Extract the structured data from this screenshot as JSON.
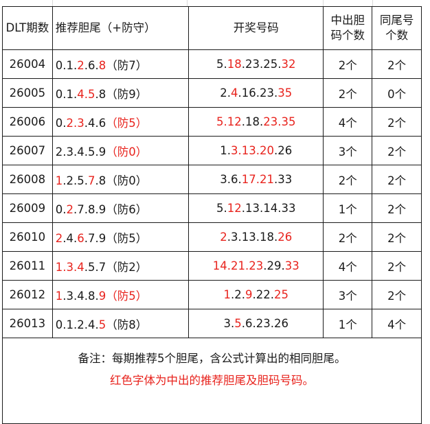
{
  "headers": {
    "period": "DLT期数",
    "recommend": "推荐胆尾（+防守）",
    "draw": "开奖号码",
    "hit": "中出胆码个数",
    "same_tail": "同尾号个数"
  },
  "hit_color": "#e8231d",
  "rows": [
    {
      "period": "26004",
      "recommend": [
        {
          "t": "0.1.",
          "h": false
        },
        {
          "t": "2",
          "h": true
        },
        {
          "t": ".6.",
          "h": false
        },
        {
          "t": "8",
          "h": true
        },
        {
          "t": "（防7）",
          "h": false
        }
      ],
      "draw": [
        {
          "t": "5.",
          "h": false
        },
        {
          "t": "18",
          "h": true
        },
        {
          "t": ".23.25.",
          "h": false
        },
        {
          "t": "32",
          "h": true
        }
      ],
      "hit": "2个",
      "same_tail": "2个"
    },
    {
      "period": "26005",
      "recommend": [
        {
          "t": "0.1.",
          "h": false
        },
        {
          "t": "4.5",
          "h": true
        },
        {
          "t": ".8（防9）",
          "h": false
        }
      ],
      "draw": [
        {
          "t": "2.",
          "h": false
        },
        {
          "t": "4",
          "h": true
        },
        {
          "t": ".16.23.",
          "h": false
        },
        {
          "t": "35",
          "h": true
        }
      ],
      "hit": "2个",
      "same_tail": "0个"
    },
    {
      "period": "26006",
      "recommend": [
        {
          "t": "0.",
          "h": false
        },
        {
          "t": "2.3",
          "h": true
        },
        {
          "t": ".4.6",
          "h": false
        },
        {
          "t": "（防5）",
          "h": true
        }
      ],
      "draw": [
        {
          "t": "5.12",
          "h": true
        },
        {
          "t": ".18.",
          "h": false
        },
        {
          "t": "23.35",
          "h": true
        }
      ],
      "hit": "4个",
      "same_tail": "2个"
    },
    {
      "period": "26007",
      "recommend": [
        {
          "t": "2.3.4.5.9",
          "h": false
        },
        {
          "t": "（防0）",
          "h": true
        }
      ],
      "draw": [
        {
          "t": "1.",
          "h": false
        },
        {
          "t": "3.13.20",
          "h": true
        },
        {
          "t": ".26",
          "h": false
        }
      ],
      "hit": "3个",
      "same_tail": "2个"
    },
    {
      "period": "26008",
      "recommend": [
        {
          "t": "1",
          "h": true
        },
        {
          "t": ".2.5.",
          "h": false
        },
        {
          "t": "7",
          "h": true
        },
        {
          "t": ".8（防0）",
          "h": false
        }
      ],
      "draw": [
        {
          "t": "3.6.",
          "h": false
        },
        {
          "t": "17.21",
          "h": true
        },
        {
          "t": ".33",
          "h": false
        }
      ],
      "hit": "2个",
      "same_tail": "2个"
    },
    {
      "period": "26009",
      "recommend": [
        {
          "t": "0.",
          "h": false
        },
        {
          "t": "2",
          "h": true
        },
        {
          "t": ".7.8.9（防6）",
          "h": false
        }
      ],
      "draw": [
        {
          "t": "5.",
          "h": false
        },
        {
          "t": "12",
          "h": true
        },
        {
          "t": ".13.14.33",
          "h": false
        }
      ],
      "hit": "1个",
      "same_tail": "2个"
    },
    {
      "period": "26010",
      "recommend": [
        {
          "t": "2",
          "h": true
        },
        {
          "t": ".4.",
          "h": false
        },
        {
          "t": "6",
          "h": true
        },
        {
          "t": ".7.9（防5）",
          "h": false
        }
      ],
      "draw": [
        {
          "t": "2",
          "h": true
        },
        {
          "t": ".3.13.18.",
          "h": false
        },
        {
          "t": "26",
          "h": true
        }
      ],
      "hit": "2个",
      "same_tail": "2个"
    },
    {
      "period": "26011",
      "recommend": [
        {
          "t": "1.3.4",
          "h": true
        },
        {
          "t": ".5.7（防2）",
          "h": false
        }
      ],
      "draw": [
        {
          "t": "14.21.23",
          "h": true
        },
        {
          "t": ".29.",
          "h": false
        },
        {
          "t": "33",
          "h": true
        }
      ],
      "hit": "4个",
      "same_tail": "2个"
    },
    {
      "period": "26012",
      "recommend": [
        {
          "t": "1",
          "h": true
        },
        {
          "t": ".3.4.8.",
          "h": false
        },
        {
          "t": "9（防5）",
          "h": true
        }
      ],
      "draw": [
        {
          "t": "1",
          "h": true
        },
        {
          "t": ".2.",
          "h": false
        },
        {
          "t": "9",
          "h": true
        },
        {
          "t": ".22.",
          "h": false
        },
        {
          "t": "25",
          "h": true
        }
      ],
      "hit": "3个",
      "same_tail": "2个"
    },
    {
      "period": "26013",
      "recommend": [
        {
          "t": "0.1.2.4.",
          "h": false
        },
        {
          "t": "5",
          "h": true
        },
        {
          "t": "（防8）",
          "h": false
        }
      ],
      "draw": [
        {
          "t": "3.",
          "h": false
        },
        {
          "t": "5",
          "h": true
        },
        {
          "t": ".6.23.26",
          "h": false
        }
      ],
      "hit": "1个",
      "same_tail": "4个"
    }
  ],
  "notes": {
    "line1": "备注：每期推荐5个胆尾，含公式计算出的相同胆尾。",
    "line2": "红色字体为中出的推荐胆尾及胆码号码。"
  }
}
